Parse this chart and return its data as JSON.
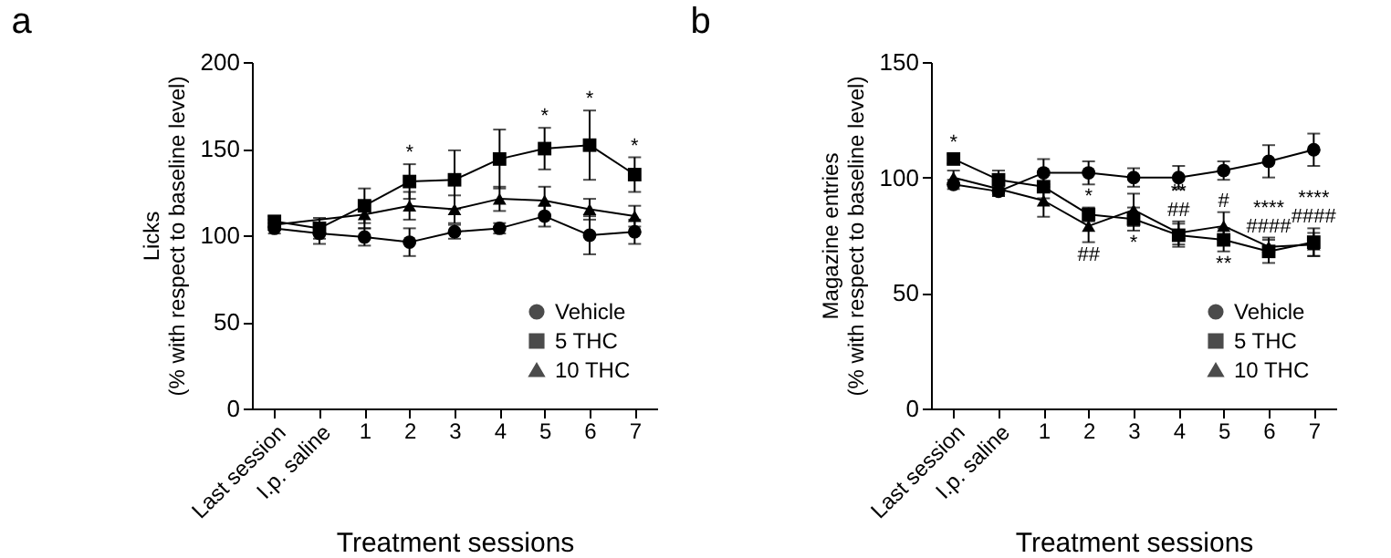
{
  "chart_data": [
    {
      "type": "line",
      "title": "a",
      "xlabel": "Treatment sessions",
      "ylabel": "Licks\n(% with respect to baseline level)",
      "categories": [
        "Last session",
        "I.p. saline",
        "1",
        "2",
        "3",
        "4",
        "5",
        "6",
        "7"
      ],
      "ylim": [
        0,
        200
      ],
      "yticks": [
        0,
        50,
        100,
        150,
        200
      ],
      "grid": false,
      "legend": "bottom right",
      "line_style": "solid",
      "series": [
        {
          "name": "Vehicle",
          "color": "#000000",
          "marker": "circle",
          "values": [
            104,
            101,
            99,
            96,
            102,
            104,
            111,
            100,
            102
          ],
          "errors": [
            3,
            6,
            5,
            8,
            4,
            3,
            6,
            11,
            7
          ]
        },
        {
          "name": "5 THC",
          "color": "#000000",
          "marker": "square",
          "values": [
            108,
            104,
            117,
            131,
            132,
            144,
            150,
            152,
            135
          ],
          "errors": [
            3,
            6,
            10,
            10,
            17,
            17,
            12,
            20,
            10
          ]
        },
        {
          "name": "10 THC",
          "color": "#000000",
          "marker": "triangle",
          "values": [
            106,
            null,
            112,
            117,
            115,
            121,
            120,
            115,
            111
          ],
          "errors": [
            3,
            null,
            8,
            8,
            8,
            7,
            8,
            6,
            6
          ]
        }
      ],
      "annotations": [
        {
          "text": "*",
          "x": "2",
          "y": 131
        },
        {
          "text": "*",
          "x": "5",
          "y": 150
        },
        {
          "text": "*",
          "x": "6",
          "y": 152
        },
        {
          "text": "*",
          "x": "7",
          "y": 135
        }
      ]
    },
    {
      "type": "line",
      "title": "b",
      "xlabel": "Treatment sessions",
      "ylabel": "Magazine entries\n(% with respect to baseline level)",
      "categories": [
        "Last session",
        "I.p. saline",
        "1",
        "2",
        "3",
        "4",
        "5",
        "6",
        "7"
      ],
      "ylim": [
        0,
        150
      ],
      "yticks": [
        0,
        50,
        100,
        150
      ],
      "grid": false,
      "legend": "bottom right",
      "line_style": "solid",
      "series": [
        {
          "name": "Vehicle",
          "color": "#000000",
          "marker": "circle",
          "values": [
            97,
            94,
            102,
            102,
            100,
            100,
            103,
            107,
            112
          ],
          "errors": [
            2,
            2,
            6,
            5,
            4,
            5,
            4,
            7,
            7
          ]
        },
        {
          "name": "5 THC",
          "color": "#000000",
          "marker": "square",
          "values": [
            108,
            99,
            96,
            84,
            82,
            75,
            73,
            68,
            72
          ],
          "errors": [
            2,
            4,
            5,
            3,
            5,
            5,
            5,
            5,
            6
          ]
        },
        {
          "name": "10 THC",
          "color": "#000000",
          "marker": "triangle",
          "values": [
            100,
            95,
            90,
            79,
            86,
            76,
            79,
            70,
            71
          ],
          "errors": [
            3,
            3,
            7,
            7,
            7,
            5,
            6,
            4,
            5
          ]
        }
      ],
      "annotations": [
        {
          "text": "*",
          "x": "Last session",
          "y": 108
        },
        {
          "text": "*",
          "x": "2",
          "y": 84
        },
        {
          "text": "##",
          "x": "2",
          "y": 79
        },
        {
          "text": "*",
          "x": "3",
          "y": 82
        },
        {
          "text": "##",
          "x": "4",
          "y": 76
        },
        {
          "text": "**",
          "x": "4",
          "y": 76
        },
        {
          "text": "#",
          "x": "5",
          "y": 79
        },
        {
          "text": "**",
          "x": "5",
          "y": 73
        },
        {
          "text": "####",
          "x": "6",
          "y": 70
        },
        {
          "text": "****",
          "x": "6",
          "y": 70
        },
        {
          "text": "####",
          "x": "7",
          "y": 72
        },
        {
          "text": "****",
          "x": "7",
          "y": 72
        }
      ]
    }
  ]
}
